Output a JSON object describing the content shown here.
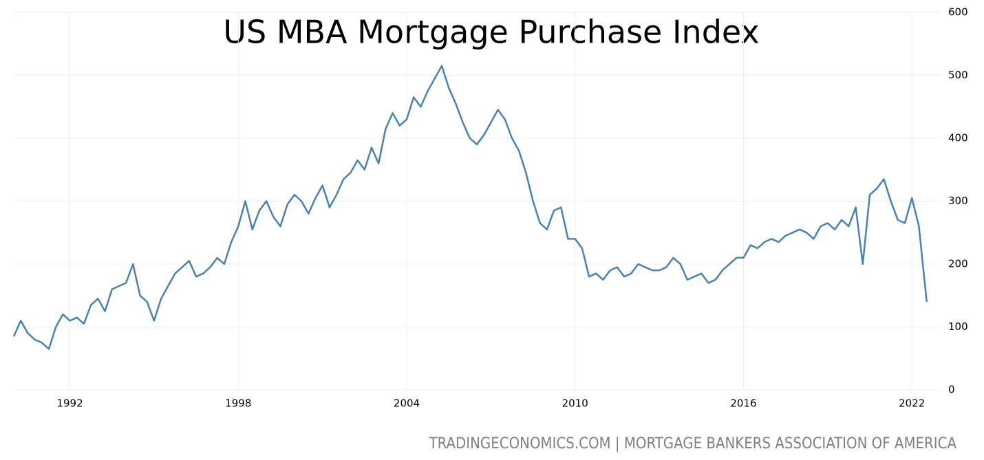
{
  "chart_data": {
    "type": "line",
    "title": "US MBA Mortgage Purchase Index",
    "source": "TRADINGECONOMICS.COM | MORTGAGE BANKERS ASSOCIATION OF AMERICA",
    "x": [
      1990,
      1990.25,
      1990.5,
      1990.75,
      1991,
      1991.25,
      1991.5,
      1991.75,
      1992,
      1992.25,
      1992.5,
      1992.75,
      1993,
      1993.25,
      1993.5,
      1993.75,
      1994,
      1994.25,
      1994.5,
      1994.75,
      1995,
      1995.25,
      1995.5,
      1995.75,
      1996,
      1996.25,
      1996.5,
      1996.75,
      1997,
      1997.25,
      1997.5,
      1997.75,
      1998,
      1998.25,
      1998.5,
      1998.75,
      1999,
      1999.25,
      1999.5,
      1999.75,
      2000,
      2000.25,
      2000.5,
      2000.75,
      2001,
      2001.25,
      2001.5,
      2001.75,
      2002,
      2002.25,
      2002.5,
      2002.75,
      2003,
      2003.25,
      2003.5,
      2003.75,
      2004,
      2004.25,
      2004.5,
      2004.75,
      2005,
      2005.25,
      2005.5,
      2005.75,
      2006,
      2006.25,
      2006.5,
      2006.75,
      2007,
      2007.25,
      2007.5,
      2007.75,
      2008,
      2008.25,
      2008.5,
      2008.75,
      2009,
      2009.25,
      2009.5,
      2009.75,
      2010,
      2010.25,
      2010.5,
      2010.75,
      2011,
      2011.25,
      2011.5,
      2011.75,
      2012,
      2012.25,
      2012.5,
      2012.75,
      2013,
      2013.25,
      2013.5,
      2013.75,
      2014,
      2014.25,
      2014.5,
      2014.75,
      2015,
      2015.25,
      2015.5,
      2015.75,
      2016,
      2016.25,
      2016.5,
      2016.75,
      2017,
      2017.25,
      2017.5,
      2017.75,
      2018,
      2018.25,
      2018.5,
      2018.75,
      2019,
      2019.25,
      2019.5,
      2019.75,
      2020,
      2020.25,
      2020.5,
      2020.75,
      2021,
      2021.25,
      2021.5,
      2021.75,
      2022,
      2022.25,
      2022.4,
      2022.53
    ],
    "series": [
      {
        "color": "#4682b4",
        "values": [
          85,
          110,
          90,
          80,
          75,
          65,
          100,
          120,
          110,
          115,
          105,
          135,
          145,
          125,
          160,
          165,
          170,
          200,
          150,
          140,
          110,
          145,
          165,
          185,
          195,
          205,
          180,
          185,
          195,
          210,
          200,
          235,
          260,
          300,
          255,
          285,
          300,
          275,
          260,
          295,
          310,
          300,
          280,
          305,
          325,
          290,
          310,
          335,
          345,
          365,
          350,
          385,
          360,
          415,
          440,
          420,
          430,
          465,
          450,
          475,
          495,
          515,
          480,
          455,
          425,
          400,
          390,
          405,
          425,
          445,
          430,
          400,
          380,
          345,
          300,
          265,
          255,
          285,
          290,
          240,
          240,
          225,
          180,
          185,
          175,
          190,
          195,
          180,
          185,
          200,
          195,
          190,
          190,
          195,
          210,
          200,
          175,
          180,
          185,
          170,
          175,
          190,
          200,
          210,
          210,
          230,
          225,
          235,
          240,
          235,
          245,
          250,
          255,
          250,
          240,
          260,
          265,
          255,
          270,
          260,
          290,
          200,
          310,
          320,
          335,
          300,
          270,
          265,
          305,
          260,
          195,
          140
        ]
      }
    ],
    "xlim": [
      1990,
      2023.05
    ],
    "xticks": [
      1992,
      1998,
      2004,
      2010,
      2016,
      2022
    ],
    "ylim": [
      0,
      600
    ],
    "yticks": [
      0,
      100,
      200,
      300,
      400,
      500,
      600
    ],
    "grid": true
  }
}
